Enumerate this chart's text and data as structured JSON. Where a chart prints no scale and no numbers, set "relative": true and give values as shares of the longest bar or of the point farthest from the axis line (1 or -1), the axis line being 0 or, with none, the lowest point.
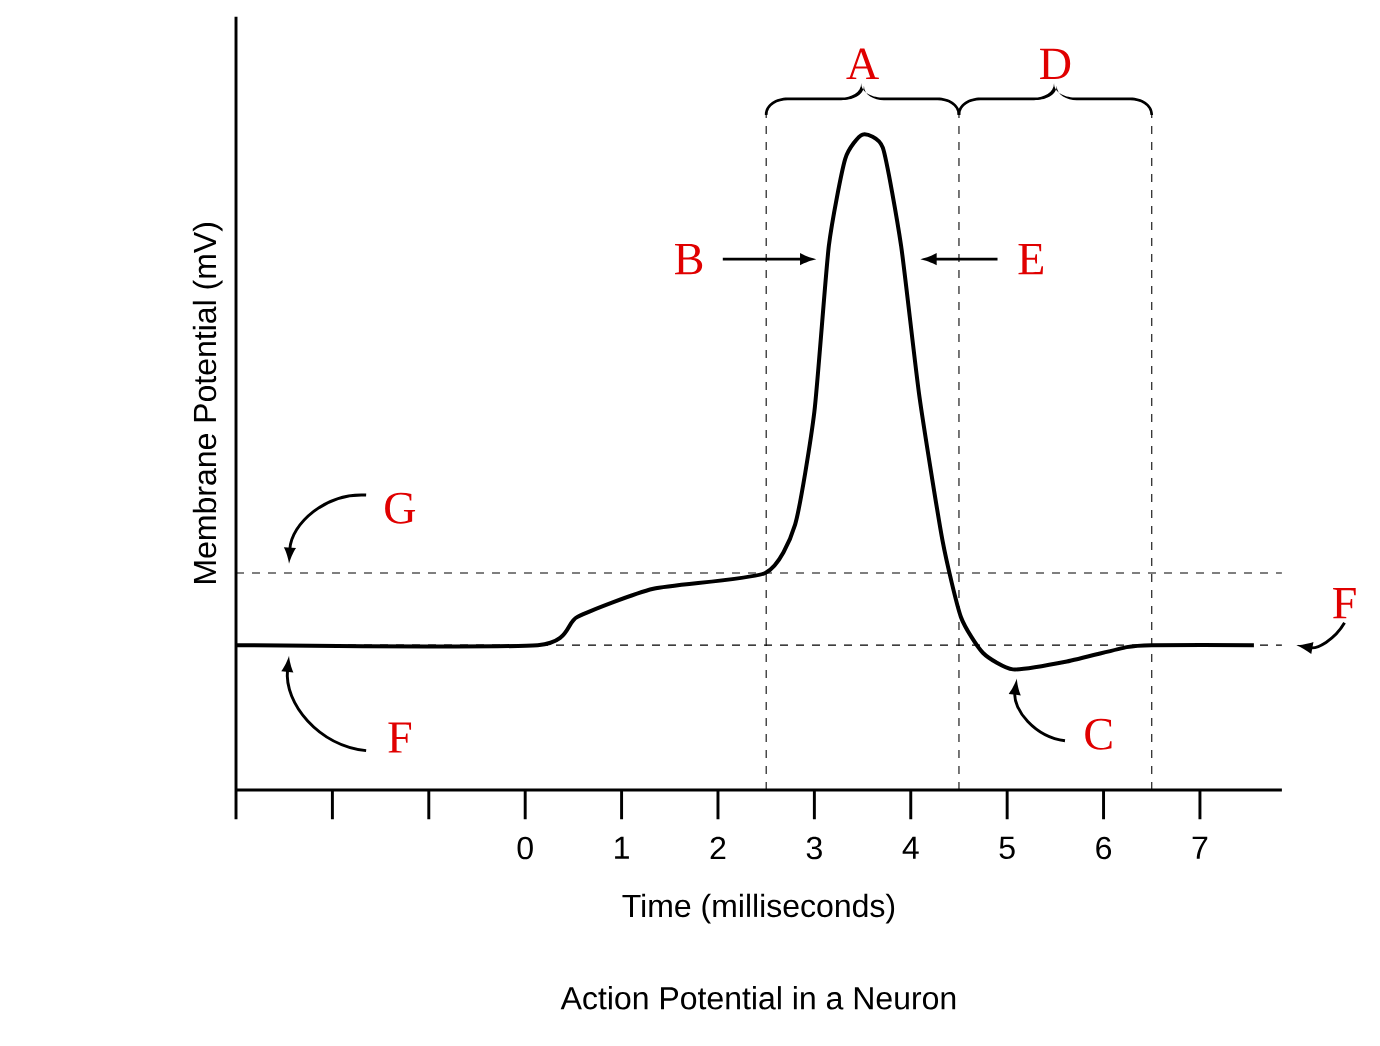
{
  "chart_data": {
    "type": "line",
    "relative": true,
    "title": "Action Potential in a Neuron",
    "xlabel": "Time (milliseconds)",
    "ylabel": "Membrane Potential (mV)",
    "x": [
      -3,
      0.13,
      0.54,
      1.33,
      2.49,
      2.8,
      3.0,
      3.15,
      3.32,
      3.5,
      3.71,
      3.9,
      4.09,
      4.33,
      4.52,
      4.75,
      5.06,
      5.62,
      6.24,
      6.5,
      7.56
    ],
    "series": [
      {
        "color": "#000000",
        "values": [
          0.221,
          0.221,
          0.264,
          0.307,
          0.331,
          0.405,
          0.577,
          0.83,
          0.963,
          1.0,
          0.98,
          0.83,
          0.6,
          0.38,
          0.264,
          0.209,
          0.184,
          0.196,
          0.218,
          0.221,
          0.221
        ]
      }
    ],
    "xlim": [
      -3,
      7.85
    ],
    "xticks": [
      {
        "value": -3,
        "label": null
      },
      {
        "value": -2,
        "label": null
      },
      {
        "value": -1,
        "label": null
      },
      0,
      1,
      2,
      3,
      4,
      5,
      6,
      7
    ],
    "ref_lines": [
      {
        "axis": "y",
        "value": 0.331,
        "line_style": "dashed"
      },
      {
        "axis": "y",
        "value": 0.221,
        "line_style": "dashed"
      },
      {
        "axis": "x",
        "value": 2.5,
        "line_style": "dashed"
      },
      {
        "axis": "x",
        "value": 4.5,
        "line_style": "dashed"
      },
      {
        "axis": "x",
        "value": 6.5,
        "line_style": "dashed"
      }
    ],
    "annotations": [
      "A",
      "D",
      "B",
      "E",
      "G",
      "F",
      "C",
      "F"
    ]
  }
}
